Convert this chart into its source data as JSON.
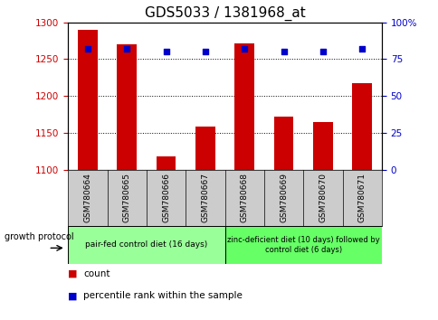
{
  "title": "GDS5033 / 1381968_at",
  "samples": [
    "GSM780664",
    "GSM780665",
    "GSM780666",
    "GSM780667",
    "GSM780668",
    "GSM780669",
    "GSM780670",
    "GSM780671"
  ],
  "counts": [
    1290,
    1270,
    1118,
    1158,
    1272,
    1172,
    1165,
    1218
  ],
  "percentile_ranks": [
    82,
    82,
    80,
    80,
    82,
    80,
    80,
    82
  ],
  "ylim_left": [
    1100,
    1300
  ],
  "ylim_right": [
    0,
    100
  ],
  "yticks_left": [
    1100,
    1150,
    1200,
    1250,
    1300
  ],
  "yticks_right": [
    0,
    25,
    50,
    75,
    100
  ],
  "bar_color": "#cc0000",
  "dot_color": "#0000cc",
  "bar_width": 0.5,
  "group1_label": "pair-fed control diet (16 days)",
  "group2_label": "zinc-deficient diet (10 days) followed by\ncontrol diet (6 days)",
  "group1_indices": [
    0,
    1,
    2,
    3
  ],
  "group2_indices": [
    4,
    5,
    6,
    7
  ],
  "group1_color": "#99ff99",
  "group2_color": "#66ff66",
  "sample_box_color": "#cccccc",
  "growth_protocol_label": "growth protocol",
  "legend_count_label": "count",
  "legend_pct_label": "percentile rank within the sample",
  "right_axis_color": "#0000cc",
  "left_axis_color": "#cc0000",
  "title_fontsize": 11,
  "tick_fontsize": 7.5,
  "sample_fontsize": 6.5,
  "protocol_fontsize": 6.5,
  "legend_fontsize": 7.5
}
